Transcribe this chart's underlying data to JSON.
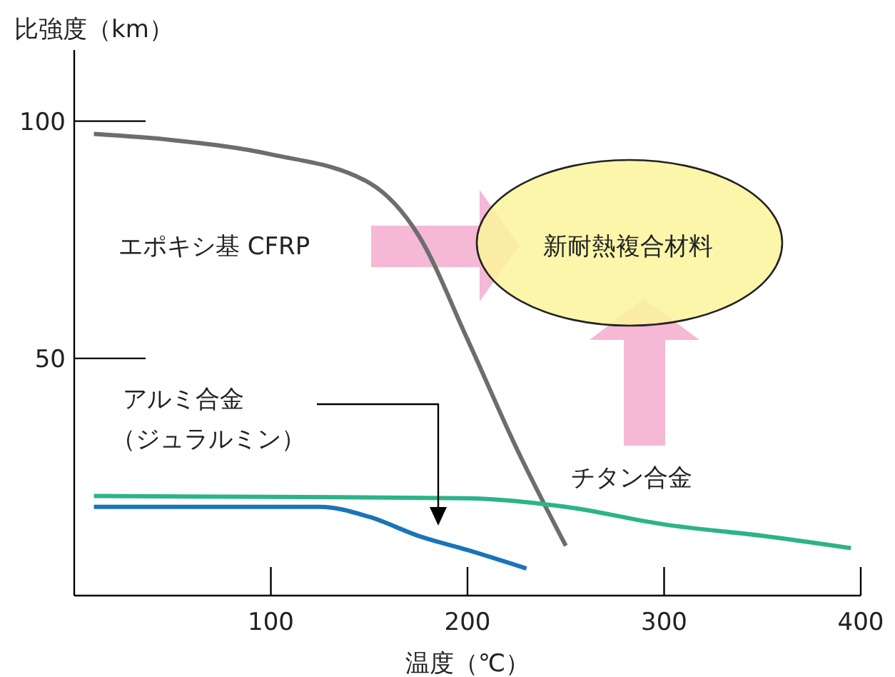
{
  "chart_data": {
    "type": "line",
    "xlabel": "温度（℃）",
    "ylabel": "比強度（km）",
    "xlim": [
      0,
      400
    ],
    "xticks": [
      100,
      200,
      300,
      400
    ],
    "ylim": [
      0,
      115
    ],
    "yticks": [
      50,
      100
    ],
    "marker": "none",
    "line_style": "solid",
    "series": [
      {
        "color": "#6d6d6d",
        "x": [
          10,
          50,
          100,
          150,
          175,
          200,
          225,
          250
        ],
        "values": [
          97.3,
          96,
          93,
          87,
          76,
          54,
          31,
          10.5
        ]
      },
      {
        "color": "#2db38a",
        "x": [
          10,
          100,
          200,
          250,
          300,
          350,
          395
        ],
        "values": [
          21,
          20.8,
          20.5,
          18.7,
          15,
          12.6,
          10
        ]
      },
      {
        "color": "#1a74b8",
        "x": [
          10,
          125,
          150,
          175,
          200,
          230
        ],
        "values": [
          18.7,
          18.7,
          16.6,
          12.6,
          9.6,
          5.7
        ]
      }
    ],
    "annotations": [
      "エポキシ基 CFRP",
      "新耐熱複合材料",
      "アルミ合金（ジュラルミン）",
      "チタン合金"
    ]
  }
}
